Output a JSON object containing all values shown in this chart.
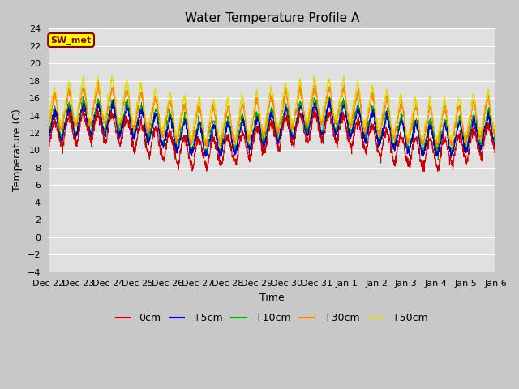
{
  "title": "Water Temperature Profile A",
  "xlabel": "Time",
  "ylabel": "Temperature (C)",
  "ylim": [
    -4,
    24
  ],
  "yticks": [
    -4,
    -2,
    0,
    2,
    4,
    6,
    8,
    10,
    12,
    14,
    16,
    18,
    20,
    22,
    24
  ],
  "fig_bg_color": "#c8c8c8",
  "plot_bg_color": "#e0e0e0",
  "annotation_text": "SW_met",
  "annotation_bg": "#ffff00",
  "annotation_border": "#8b0000",
  "annotation_text_color": "#8b0000",
  "colors": {
    "0cm": "#cc0000",
    "+5cm": "#0000cc",
    "+10cm": "#00aa00",
    "+30cm": "#ff8800",
    "+50cm": "#dddd00"
  },
  "legend_labels": [
    "0cm",
    "+5cm",
    "+10cm",
    "+30cm",
    "+50cm"
  ],
  "xtick_labels": [
    "Dec 22",
    "Dec 23",
    "Dec 24",
    "Dec 25",
    "Dec 26",
    "Dec 27",
    "Dec 28",
    "Dec 29",
    "Dec 30",
    "Dec 31",
    "Jan 1",
    "Jan 2",
    "Jan 3",
    "Jan 4",
    "Jan 5",
    "Jan 6"
  ],
  "n_days": 16,
  "samples_per_day": 144
}
